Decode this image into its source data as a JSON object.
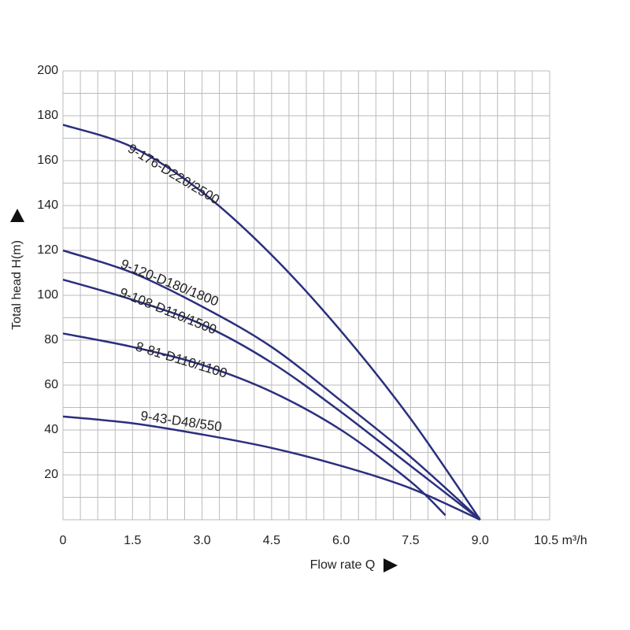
{
  "chart_data": {
    "type": "line",
    "x_label": "Flow rate Q",
    "y_label": "Total head H(m)",
    "xlim": [
      0,
      10.5
    ],
    "ylim": [
      0,
      200
    ],
    "xticks": [
      0,
      1.5,
      {
        "value": 3,
        "label": "3.0"
      },
      4.5,
      {
        "value": 6,
        "label": "6.0"
      },
      7.5,
      {
        "value": 9,
        "label": "9.0"
      },
      {
        "value": 10.5,
        "label": "10.5 m³/h"
      }
    ],
    "yticks": [
      20,
      40,
      60,
      80,
      100,
      120,
      140,
      160,
      180,
      200
    ],
    "grid": true,
    "xgrid_step": 0.375,
    "ygrid_step": 10,
    "series": [
      {
        "name": "9-176-D220/2500",
        "color": "#2b2f7e",
        "x": [
          0,
          1.5,
          3,
          4.5,
          6,
          7.5,
          9
        ],
        "values": [
          176,
          166,
          146,
          118,
          84,
          45,
          0
        ]
      },
      {
        "name": "9-120-D180/1800",
        "color": "#2b2f7e",
        "x": [
          0,
          1.5,
          3,
          4.5,
          6,
          7.5,
          9
        ],
        "values": [
          120,
          110,
          95,
          77,
          53,
          28,
          0
        ]
      },
      {
        "name": "9-108-D110/1500",
        "color": "#2b2f7e",
        "x": [
          0,
          1.5,
          3,
          4.5,
          6,
          7.5,
          9
        ],
        "values": [
          107,
          98,
          87,
          70,
          48,
          24,
          0
        ]
      },
      {
        "name": "8-81-D110/1100",
        "color": "#2b2f7e",
        "x": [
          0,
          1.5,
          3,
          4.5,
          6,
          7.5,
          8.25
        ],
        "values": [
          83,
          77,
          69,
          57,
          40,
          17,
          2
        ]
      },
      {
        "name": "9-43-D48/550",
        "color": "#2b2f7e",
        "x": [
          0,
          1.5,
          3,
          4.5,
          6,
          7.5,
          9
        ],
        "values": [
          46,
          43,
          38,
          32,
          24,
          14,
          0
        ]
      }
    ]
  }
}
